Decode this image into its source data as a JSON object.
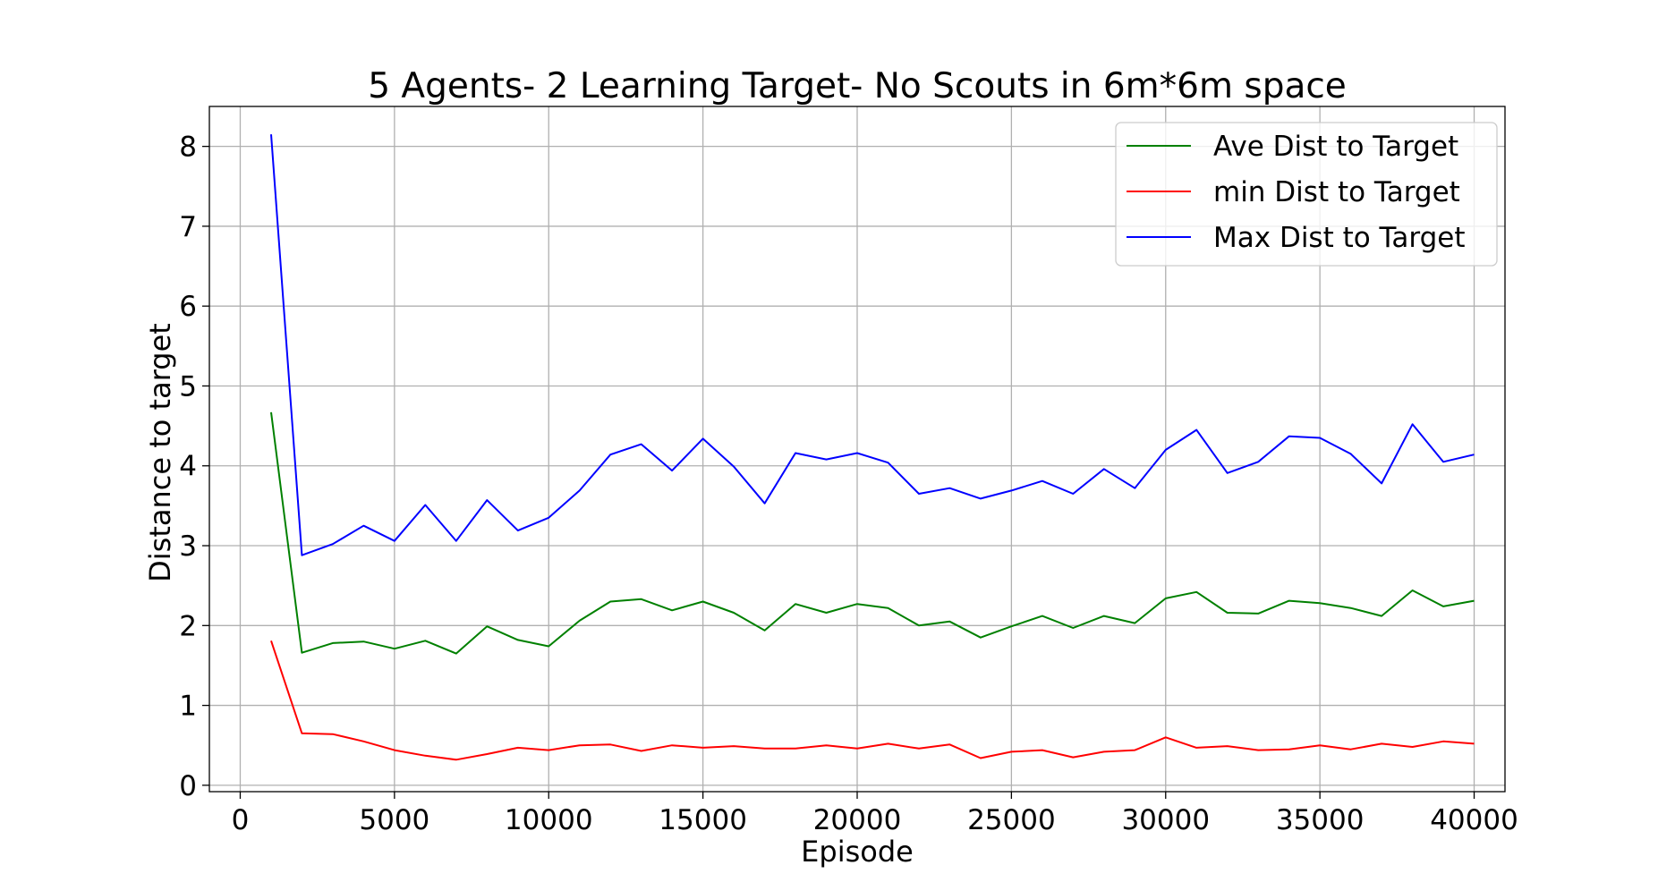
{
  "chart_data": {
    "type": "line",
    "title": "5 Agents- 2 Learning Target- No Scouts in 6m*6m space",
    "xlabel": "Episode",
    "ylabel": "Distance to target",
    "xlim": [
      -1000,
      41000
    ],
    "ylim": [
      -0.08,
      8.5
    ],
    "xticks": [
      0,
      5000,
      10000,
      15000,
      20000,
      25000,
      30000,
      35000,
      40000
    ],
    "yticks": [
      0,
      1,
      2,
      3,
      4,
      5,
      6,
      7,
      8
    ],
    "grid": true,
    "legend_position": "top-right",
    "x": [
      1000,
      2000,
      3000,
      4000,
      5000,
      6000,
      7000,
      8000,
      9000,
      10000,
      11000,
      12000,
      13000,
      14000,
      15000,
      16000,
      17000,
      18000,
      19000,
      20000,
      21000,
      22000,
      23000,
      24000,
      25000,
      26000,
      27000,
      28000,
      29000,
      30000,
      31000,
      32000,
      33000,
      34000,
      35000,
      36000,
      37000,
      38000,
      39000,
      40000
    ],
    "series": [
      {
        "name": "Ave Dist to Target",
        "color": "#008000",
        "values": [
          4.67,
          1.66,
          1.78,
          1.8,
          1.71,
          1.81,
          1.65,
          1.99,
          1.82,
          1.74,
          2.06,
          2.3,
          2.33,
          2.19,
          2.3,
          2.16,
          1.94,
          2.27,
          2.16,
          2.27,
          2.22,
          2.0,
          2.05,
          1.85,
          1.99,
          2.12,
          1.97,
          2.12,
          2.03,
          2.34,
          2.42,
          2.16,
          2.15,
          2.31,
          2.28,
          2.22,
          2.12,
          2.44,
          2.24,
          2.31
        ]
      },
      {
        "name": "min Dist to Target",
        "color": "#ff0000",
        "values": [
          1.81,
          0.65,
          0.64,
          0.55,
          0.44,
          0.37,
          0.32,
          0.39,
          0.47,
          0.44,
          0.5,
          0.51,
          0.43,
          0.5,
          0.47,
          0.49,
          0.46,
          0.46,
          0.5,
          0.46,
          0.52,
          0.46,
          0.51,
          0.34,
          0.42,
          0.44,
          0.35,
          0.42,
          0.44,
          0.6,
          0.47,
          0.49,
          0.44,
          0.45,
          0.5,
          0.45,
          0.52,
          0.48,
          0.55,
          0.52
        ]
      },
      {
        "name": "Max Dist to Target",
        "color": "#0000ff",
        "values": [
          8.15,
          2.88,
          3.02,
          3.25,
          3.06,
          3.51,
          3.06,
          3.57,
          3.19,
          3.35,
          3.69,
          4.14,
          4.27,
          3.94,
          4.34,
          3.99,
          3.53,
          4.16,
          4.08,
          4.16,
          4.04,
          3.65,
          3.72,
          3.59,
          3.69,
          3.81,
          3.65,
          3.96,
          3.72,
          4.2,
          4.45,
          3.91,
          4.05,
          4.37,
          4.35,
          4.15,
          3.78,
          4.52,
          4.05,
          4.14
        ]
      }
    ]
  }
}
